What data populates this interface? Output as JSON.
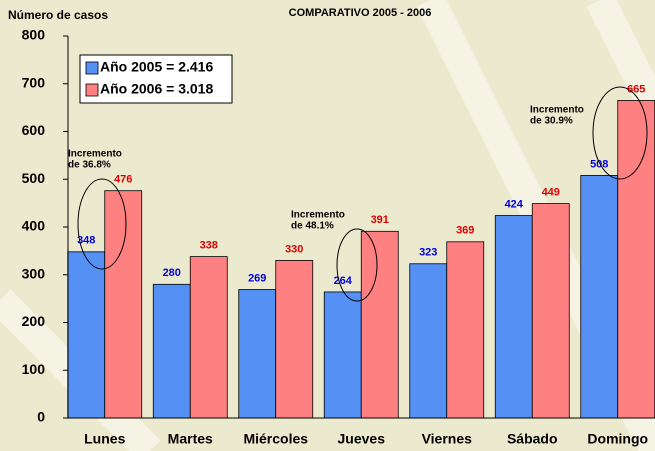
{
  "chart_data": {
    "type": "bar",
    "title": "COMPARATIVO  2005 - 2006",
    "y_label": "Número de casos",
    "categories": [
      "Lunes",
      "Martes",
      "Miércoles",
      "Jueves",
      "Viernes",
      "Sábado",
      "Domingo"
    ],
    "series": [
      {
        "name": "Año 2005 = 2.416",
        "color": "#5590f5",
        "label_color": "#0000dd",
        "values": [
          348,
          280,
          269,
          264,
          323,
          424,
          508
        ]
      },
      {
        "name": "Año 2006 = 3.018",
        "color": "#ff8080",
        "label_color": "#dd0000",
        "values": [
          476,
          338,
          330,
          391,
          369,
          449,
          665
        ]
      }
    ],
    "ylim": [
      0,
      800
    ],
    "yticks": [
      0,
      100,
      200,
      300,
      400,
      500,
      600,
      700,
      800
    ],
    "annotations": [
      [
        "Incremento",
        "de 36.8%"
      ],
      [
        "Incremento",
        "de 48.1%"
      ],
      [
        "Incremento",
        "de 30.9%"
      ]
    ],
    "legend": "upper left"
  }
}
